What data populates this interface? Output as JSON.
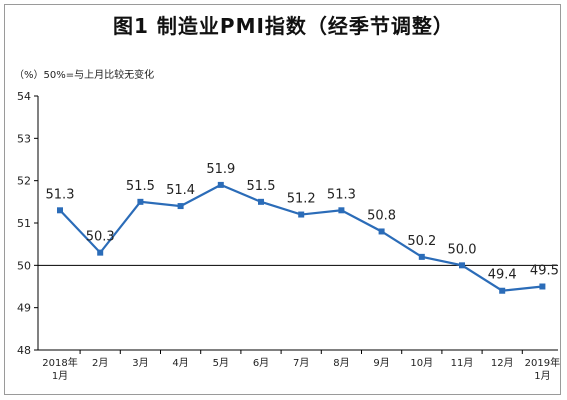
{
  "chart_title": "图1 制造业PMI指数（经季节调整）",
  "unit_note": "（%）50%=与上月比较无变化",
  "colors": {
    "series": "#2b6cb8",
    "axis": "#000000",
    "frame": "#9a9a9a"
  },
  "chart_data": {
    "type": "line",
    "title": "图1 制造业PMI指数（经季节调整）",
    "ylabel": "（%）",
    "xlabel": "",
    "ylim": [
      48,
      54
    ],
    "yticks": [
      "48",
      "49",
      "50",
      "51",
      "52",
      "53",
      "54"
    ],
    "reference_line": 50,
    "grid": false,
    "categories": [
      [
        "2018年",
        "1月"
      ],
      [
        "2月"
      ],
      [
        "3月"
      ],
      [
        "4月"
      ],
      [
        "5月"
      ],
      [
        "6月"
      ],
      [
        "7月"
      ],
      [
        "8月"
      ],
      [
        "9月"
      ],
      [
        "10月"
      ],
      [
        "11月"
      ],
      [
        "12月"
      ],
      [
        "2019年",
        "1月"
      ]
    ],
    "values": [
      51.3,
      50.3,
      51.5,
      51.4,
      51.9,
      51.5,
      51.2,
      51.3,
      50.8,
      50.2,
      50.0,
      49.4,
      49.5
    ],
    "data_labels": [
      "51.3",
      "50.3",
      "51.5",
      "51.4",
      "51.9",
      "51.5",
      "51.2",
      "51.3",
      "50.8",
      "50.2",
      "50.0",
      "49.4",
      "49.5"
    ]
  }
}
